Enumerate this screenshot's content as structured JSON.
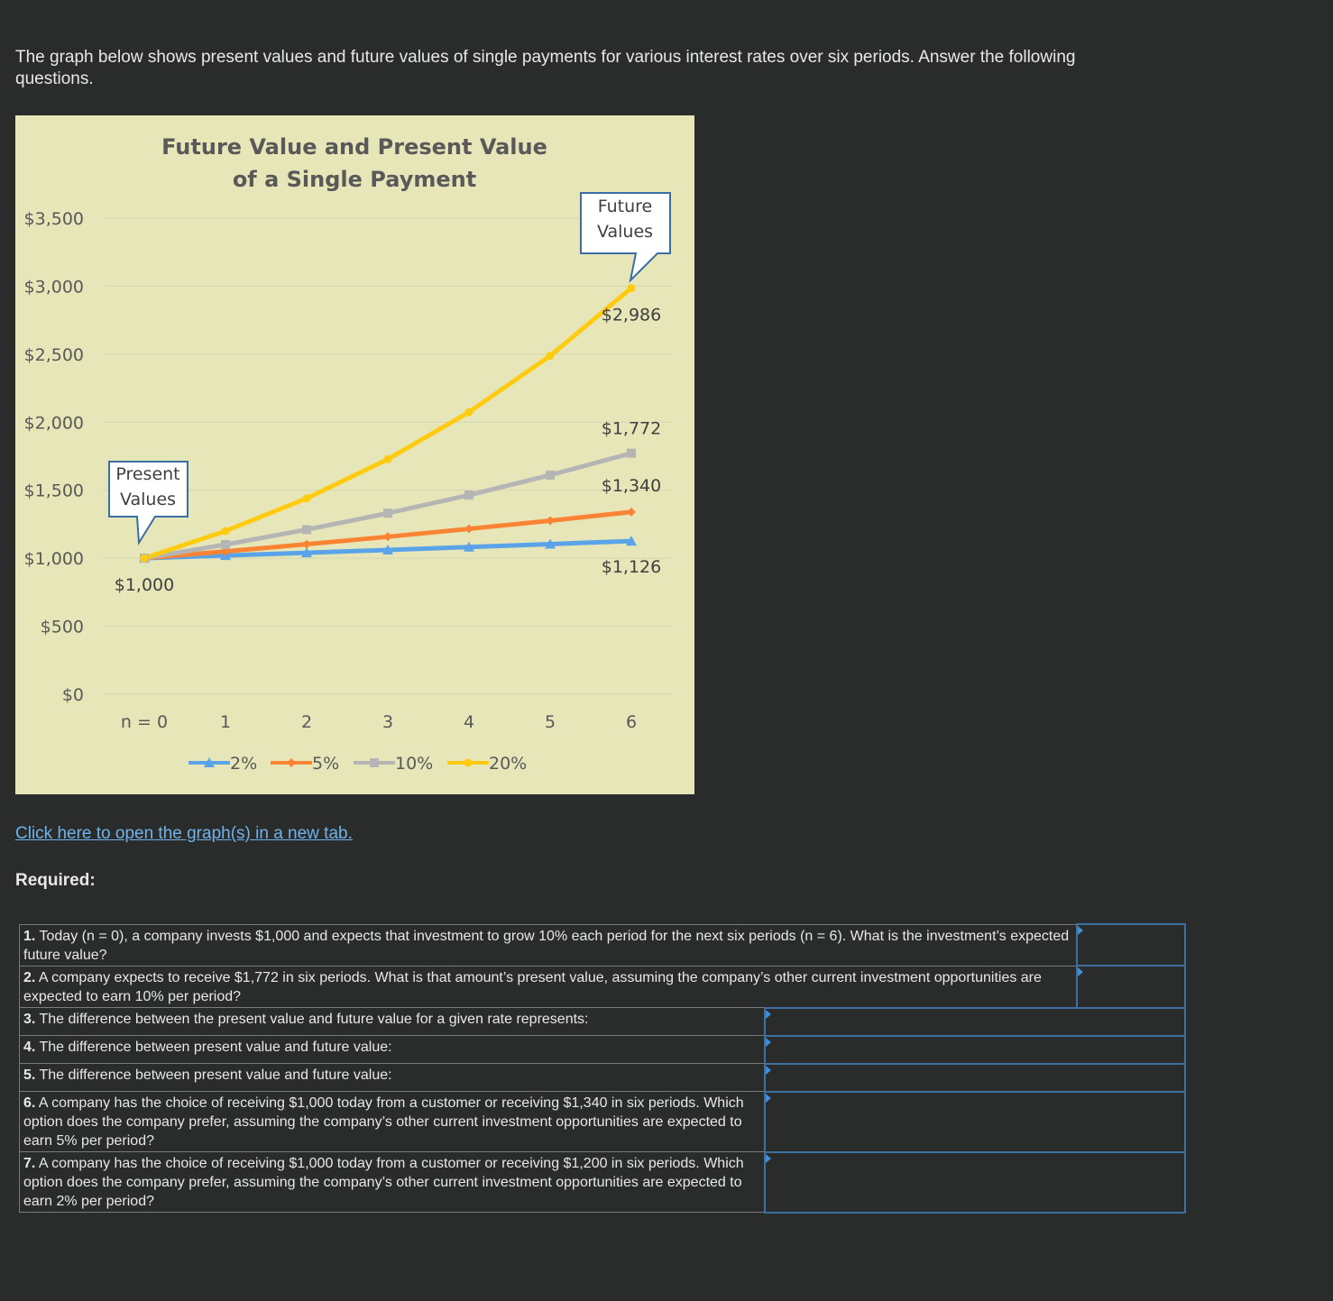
{
  "intro": "The graph below shows present values and future values of single payments for various interest rates over six periods. Answer the following questions.",
  "chart_data": {
    "type": "line",
    "title_line1": "Future Value and Present Value",
    "title_line2": "of a Single Payment",
    "categories": [
      "n = 0",
      "1",
      "2",
      "3",
      "4",
      "5",
      "6"
    ],
    "y_ticks": [
      "$0",
      "$500",
      "$1,000",
      "$1,500",
      "$2,000",
      "$2,500",
      "$3,000",
      "$3,500"
    ],
    "ylim": [
      0,
      3500
    ],
    "grid": true,
    "legend_position": "bottom",
    "series": [
      {
        "name": "2%",
        "color": "#5ba3e8",
        "marker": "triangle",
        "values": [
          1000,
          1020,
          1040,
          1061,
          1082,
          1104,
          1126
        ]
      },
      {
        "name": "5%",
        "color": "#fb8434",
        "marker": "diamond",
        "values": [
          1000,
          1050,
          1103,
          1158,
          1216,
          1276,
          1340
        ]
      },
      {
        "name": "10%",
        "color": "#b5b5b5",
        "marker": "square",
        "values": [
          1000,
          1100,
          1210,
          1331,
          1464,
          1611,
          1772
        ]
      },
      {
        "name": "20%",
        "color": "#ffcb10",
        "marker": "circle",
        "values": [
          1000,
          1200,
          1440,
          1728,
          2074,
          2488,
          2986
        ]
      }
    ],
    "data_labels": {
      "start": "$1,000",
      "fv_20": "$2,986",
      "fv_10": "$1,772",
      "fv_5": "$1,340",
      "fv_2": "$1,126"
    },
    "callouts": {
      "present_line1": "Present",
      "present_line2": "Values",
      "future_line1": "Future",
      "future_line2": "Values"
    }
  },
  "link_text": "Click here to open the graph(s) in a new tab.",
  "required_label": "Required:",
  "questions": [
    {
      "num": "1.",
      "text": " Today (n = 0), a company invests $1,000 and expects that investment to grow 10% each period for the next six periods (n = 6). What is the investment’s expected future value?"
    },
    {
      "num": "2.",
      "text": " A company expects to receive $1,772 in six periods. What is that amount’s present value, assuming the company’s other current investment opportunities are expected to earn 10% per period?"
    },
    {
      "num": "3.",
      "text": " The difference between the present value and future value for a given rate represents:"
    },
    {
      "num": "4.",
      "text": " The difference between present value and future value:"
    },
    {
      "num": "5.",
      "text": " The difference between present value and future value:"
    },
    {
      "num": "6.",
      "text": " A company has the choice of receiving $1,000 today from a customer or receiving $1,340 in six periods. Which option does the company prefer, assuming the company’s other current investment opportunities are expected to earn 5% per period?"
    },
    {
      "num": "7.",
      "text": " A company has the choice of receiving $1,000 today from a customer or receiving $1,200 in six periods. Which option does the company prefer, assuming the company’s other current investment opportunities are expected to earn 2% per period?"
    }
  ]
}
